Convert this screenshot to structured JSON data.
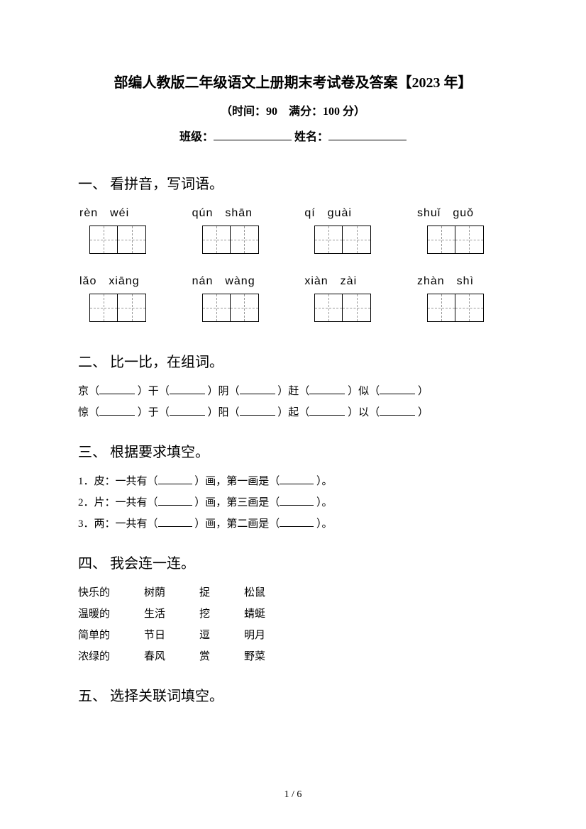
{
  "page": {
    "title": "部编人教版二年级语文上册期末考试卷及答案【2023 年】",
    "subtitle": "（时间：90　满分：100 分）",
    "class_label": "班级：",
    "name_label": "姓名：",
    "page_number": "1 / 6"
  },
  "sections": {
    "s1": {
      "title": "一、 看拼音，写词语。",
      "row1": [
        {
          "pinyin": "rèn　wéi"
        },
        {
          "pinyin": "qún　shān"
        },
        {
          "pinyin": "qí　guài"
        },
        {
          "pinyin": "shuǐ　guǒ"
        }
      ],
      "row2": [
        {
          "pinyin": "lǎo　xiāng"
        },
        {
          "pinyin": "nán　wàng"
        },
        {
          "pinyin": "xiàn　zài"
        },
        {
          "pinyin": "zhàn　shì"
        }
      ]
    },
    "s2": {
      "title": "二、 比一比，在组词。",
      "line1": [
        "京（",
        "）干（",
        "）阴（",
        "）赶（",
        "）似（",
        "）"
      ],
      "line2": [
        "惊（",
        "）于（",
        "）阳（",
        "）起（",
        "）以（",
        "）"
      ]
    },
    "s3": {
      "title": "三、 根据要求填空。",
      "items": [
        {
          "prefix": "1．皮：一共有（",
          "mid": "）画，第一画是（",
          "suffix": "）。"
        },
        {
          "prefix": "2．片：一共有（",
          "mid": "）画，第三画是（",
          "suffix": "）。"
        },
        {
          "prefix": "3．两：一共有（",
          "mid": "）画，第二画是（",
          "suffix": "）。"
        }
      ]
    },
    "s4": {
      "title": "四、 我会连一连。",
      "col1": [
        "快乐的",
        "温暖的",
        "简单的",
        "浓绿的"
      ],
      "col2": [
        "树荫",
        "生活",
        "节日",
        "春风"
      ],
      "col3": [
        "捉",
        "挖",
        "逗",
        "赏"
      ],
      "col4": [
        "松鼠",
        "蜻蜓",
        "明月",
        "野菜"
      ]
    },
    "s5": {
      "title": "五、 选择关联词填空。"
    }
  }
}
